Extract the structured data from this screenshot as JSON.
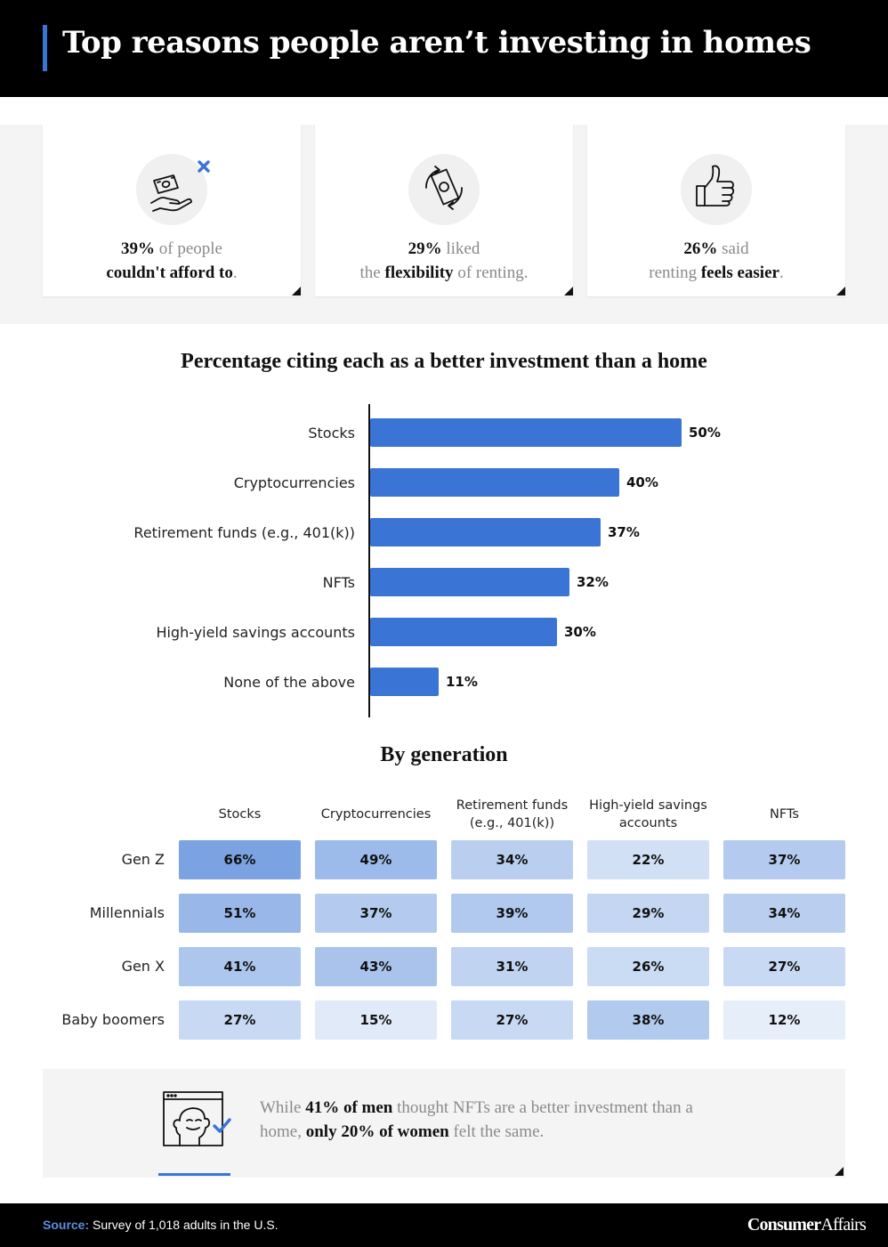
{
  "header": {
    "title": "Top reasons people aren’t investing in homes"
  },
  "stats": [
    {
      "icon": "money-hand-x-icon",
      "bold1": "39%",
      "rest1": " of people",
      "bold2": "couldn't afford to",
      "rest2": "."
    },
    {
      "icon": "rotating-cash-icon",
      "bold1": "29%",
      "rest1": " liked",
      "pre2": "the ",
      "bold2": "flexibility",
      "rest2": " of renting."
    },
    {
      "icon": "thumbs-up-icon",
      "bold1": "26%",
      "rest1": " said",
      "pre2": "renting ",
      "bold2": "feels easier",
      "rest2": "."
    }
  ],
  "bar_section_title": "Percentage citing each as a better investment than a home",
  "generation_section_title": "By generation",
  "chart_data": [
    {
      "type": "bar",
      "orientation": "horizontal",
      "title": "Percentage citing each as a better investment than a home",
      "categories": [
        "Stocks",
        "Cryptocurrencies",
        "Retirement funds (e.g., 401(k))",
        "NFTs",
        "High-yield savings accounts",
        "None of the above"
      ],
      "values": [
        50,
        40,
        37,
        32,
        30,
        11
      ],
      "value_labels": [
        "50%",
        "40%",
        "37%",
        "32%",
        "30%",
        "11%"
      ],
      "bar_color": "#3a74d4",
      "xlim": [
        0,
        100
      ],
      "grid": false
    },
    {
      "type": "heatmap",
      "title": "By generation",
      "columns": [
        "Stocks",
        "Cryptocurrencies",
        "Retirement funds (e.g., 401(k))",
        "High-yield savings accounts",
        "NFTs"
      ],
      "rows": [
        "Gen Z",
        "Millennials",
        "Gen X",
        "Baby boomers"
      ],
      "values": [
        [
          66,
          49,
          34,
          22,
          37
        ],
        [
          51,
          37,
          39,
          29,
          34
        ],
        [
          41,
          43,
          31,
          26,
          27
        ],
        [
          27,
          15,
          27,
          38,
          12
        ]
      ],
      "cell_labels": [
        [
          "66%",
          "49%",
          "34%",
          "22%",
          "37%"
        ],
        [
          "51%",
          "37%",
          "39%",
          "29%",
          "34%"
        ],
        [
          "41%",
          "43%",
          "31%",
          "26%",
          "27%"
        ],
        [
          "27%",
          "15%",
          "27%",
          "38%",
          "12%"
        ]
      ],
      "color_low": "#e6eefa",
      "color_high": "#7ba3e2"
    }
  ],
  "note": {
    "icon": "nft-ape-check-icon",
    "t1": "While ",
    "b1": "41% of men",
    "t2": " thought NFTs are a better investment than a home, ",
    "b2": "only 20% of women",
    "t3": " felt the same."
  },
  "footer": {
    "source_label": "Source:",
    "source_text": " Survey of 1,018 adults in the U.S.",
    "brand_bold": "Consumer",
    "brand_rest": "Affairs"
  },
  "colors": {
    "accent": "#3a74d4",
    "background": "#ffffff",
    "band": "#f4f4f4",
    "header": "#000000"
  }
}
